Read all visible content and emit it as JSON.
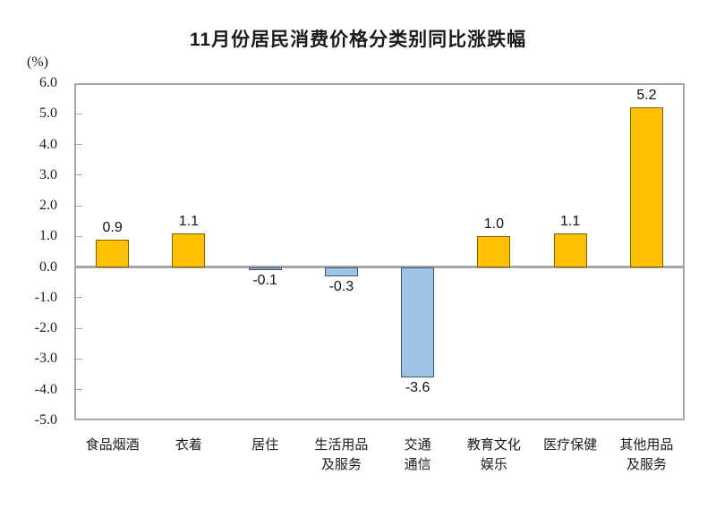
{
  "chart_data": {
    "type": "bar",
    "title": "11月份居民消费价格分类别同比涨跌幅",
    "unit_label": "(%)",
    "categories": [
      "食品烟酒",
      "衣着",
      "居住",
      "生活用品\n及服务",
      "交通\n通信",
      "教育文化\n娱乐",
      "医疗保健",
      "其他用品\n及服务"
    ],
    "values": [
      0.9,
      1.1,
      -0.1,
      -0.3,
      -3.6,
      1.0,
      1.1,
      5.2
    ],
    "value_labels": [
      "0.9",
      "1.1",
      "-0.1",
      "-0.3",
      "-3.6",
      "1.0",
      "1.1",
      "5.2"
    ],
    "ylim": [
      -5.0,
      6.0
    ],
    "ytick_step": 1.0,
    "yticks": [
      "6.0",
      "5.0",
      "4.0",
      "3.0",
      "2.0",
      "1.0",
      "0.0",
      "-1.0",
      "-2.0",
      "-3.0",
      "-4.0",
      "-5.0"
    ],
    "grid": false,
    "legend": "none",
    "xlabel": "",
    "ylabel": "(%)",
    "colors": {
      "positive_fill": "#FFC000",
      "positive_border": "#806000",
      "negative_fill": "#9DC3E6",
      "negative_border": "#44546A",
      "axis": "#A6A6A6",
      "text": "#1a1a1a"
    }
  }
}
